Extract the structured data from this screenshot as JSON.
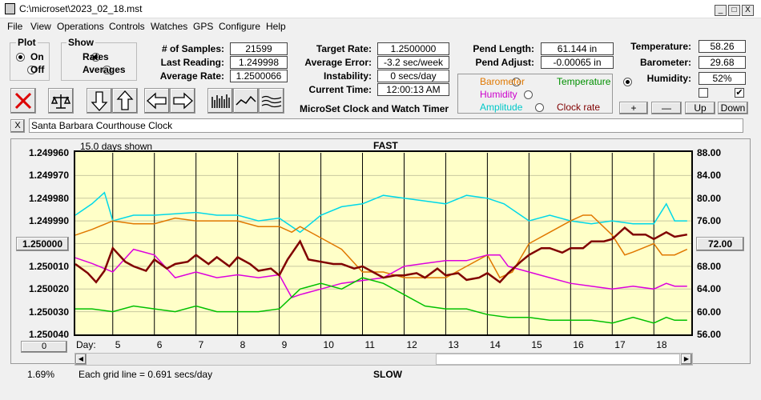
{
  "window": {
    "title": "C:\\microset\\2023_02_18.mst",
    "min": "_",
    "max": "□",
    "close": "X"
  },
  "menu": [
    "File",
    "View",
    "Operations",
    "Controls",
    "Watches",
    "GPS",
    "Configure",
    "Help"
  ],
  "plot_group": {
    "title": "Plot",
    "on": "On",
    "off": "Off",
    "selected": "On"
  },
  "show_group": {
    "title": "Show",
    "rates": "Rates",
    "averages": "Averages",
    "selected": "Rates"
  },
  "stats": {
    "samples_label": "# of Samples:",
    "samples": "21599",
    "last_label": "Last Reading:",
    "last": "1.249998",
    "avg_label": "Average Rate:",
    "avg": "1.2500066"
  },
  "target": {
    "target_label": "Target Rate:",
    "target": "1.2500000",
    "error_label": "Average Error:",
    "error": "-3.2 sec/week",
    "instab_label": "Instability:",
    "instab": "0 secs/day",
    "time_label": "Current Time:",
    "time": "12:00:13 AM",
    "caption": "MicroSet Clock and Watch Timer"
  },
  "pend": {
    "length_label": "Pend Length:",
    "length": "61.144 in",
    "adjust_label": "Pend Adjust:",
    "adjust": "-0.00065 in"
  },
  "env": {
    "temp_label": "Temperature:",
    "temp": "58.26",
    "baro_label": "Barometer:",
    "baro": "29.68",
    "hum_label": "Humidity:",
    "hum": "52%"
  },
  "overlay": {
    "barometer": "Barometer",
    "humidity": "Humidity",
    "amplitude": "Amplitude",
    "temperature": "Temperature",
    "clock_rate": "Clock rate",
    "selected": "Temperature",
    "colors": {
      "barometer": "#e07800",
      "humidity": "#cc00cc",
      "amplitude": "#00c8c8",
      "temperature": "#009000",
      "clock_rate": "#800000"
    }
  },
  "scale_buttons": {
    "plus": "+",
    "minus": "—",
    "up": "Up",
    "down": "Down"
  },
  "clock_name": {
    "close": "X",
    "value": "Santa Barbara Courthouse Clock"
  },
  "chart_labels": {
    "shown": "15.0 days shown",
    "fast": "FAST",
    "slow": "SLOW",
    "day": "Day:",
    "grid": "Each grid line = 0.691 secs/day",
    "pct": "1.69%",
    "left_btn": "0"
  },
  "chart_data": {
    "type": "line",
    "left_ticks": [
      "1.249960",
      "1.249970",
      "1.249980",
      "1.249990",
      "1.250000",
      "1.250010",
      "1.250020",
      "1.250030",
      "1.250040"
    ],
    "right_ticks": [
      "88.00",
      "84.00",
      "80.00",
      "76.00",
      "72.00",
      "68.00",
      "64.00",
      "60.00",
      "56.00"
    ],
    "day_ticks": [
      "5",
      "6",
      "7",
      "8",
      "9",
      "10",
      "11",
      "12",
      "13",
      "14",
      "15",
      "16",
      "17",
      "18"
    ],
    "xlim": [
      4.1,
      18.9
    ],
    "ylim_left": [
      1.25004,
      1.24996
    ],
    "ylim_right": [
      56,
      88
    ],
    "series": [
      {
        "name": "Amplitude",
        "color": "#00d8e8",
        "x": [
          4.1,
          4.5,
          4.8,
          5.0,
          5.5,
          6.0,
          7.0,
          7.5,
          8.0,
          8.5,
          9.0,
          9.5,
          10.0,
          10.5,
          11.0,
          11.5,
          12.0,
          12.5,
          13.0,
          13.5,
          14.0,
          14.4,
          14.8,
          15.0,
          15.5,
          16.0,
          16.5,
          17.0,
          17.5,
          18.0,
          18.3,
          18.5,
          18.8
        ],
        "y": [
          77,
          79,
          81,
          76,
          77,
          77,
          77.5,
          77,
          77,
          76,
          76.5,
          74,
          77,
          78.5,
          79,
          80.5,
          80,
          79.5,
          79,
          80.5,
          80,
          79,
          77,
          76,
          77,
          76,
          75.5,
          76,
          75.5,
          75.5,
          79,
          76,
          76
        ]
      },
      {
        "name": "Barometer",
        "color": "#e07800",
        "x": [
          4.1,
          4.5,
          5.0,
          5.5,
          6.0,
          6.5,
          7.0,
          7.5,
          8.0,
          8.5,
          9.0,
          9.3,
          9.5,
          10.0,
          10.5,
          11.0,
          11.5,
          12.0,
          12.5,
          13.0,
          13.5,
          14.0,
          14.3,
          14.6,
          15.0,
          15.5,
          16.0,
          16.3,
          16.5,
          17.0,
          17.3,
          17.5,
          18.0,
          18.2,
          18.5,
          18.8
        ],
        "y": [
          73.5,
          74.5,
          76,
          75.5,
          75.5,
          76.5,
          76,
          76,
          76,
          75,
          75,
          74,
          75,
          73,
          71,
          67,
          67,
          66,
          66,
          66,
          68,
          70,
          66,
          67,
          72,
          74,
          76,
          77,
          77,
          73.5,
          70,
          70.5,
          72,
          70,
          70,
          71
        ]
      },
      {
        "name": "Humidity",
        "color": "#dd00dd",
        "x": [
          4.1,
          4.5,
          5.0,
          5.5,
          6.0,
          6.5,
          7.0,
          7.5,
          8.0,
          8.5,
          9.0,
          9.3,
          9.5,
          10.0,
          10.5,
          11.0,
          11.5,
          12.0,
          12.5,
          13.0,
          13.5,
          14.0,
          14.3,
          14.5,
          15.0,
          15.5,
          16.0,
          16.5,
          17.0,
          17.5,
          18.0,
          18.3,
          18.5,
          18.8
        ],
        "y": [
          69.5,
          68.5,
          67,
          71,
          70,
          66,
          67,
          66,
          66.5,
          66,
          66.5,
          62.5,
          63,
          64,
          65,
          65.5,
          66,
          68,
          68.5,
          69,
          69,
          70,
          70,
          68,
          67,
          66,
          65,
          64.5,
          64,
          64.5,
          64,
          65,
          64.5,
          64.5
        ]
      },
      {
        "name": "Temperature",
        "color": "#00c000",
        "x": [
          4.1,
          4.5,
          5.0,
          5.5,
          6.0,
          6.5,
          7.0,
          7.5,
          8.0,
          8.5,
          9.0,
          9.5,
          10.0,
          10.5,
          11.0,
          11.5,
          12.0,
          12.5,
          13.0,
          13.5,
          14.0,
          14.5,
          15.0,
          15.5,
          16.0,
          16.5,
          17.0,
          17.5,
          18.0,
          18.3,
          18.5,
          18.8
        ],
        "y": [
          60.5,
          60.5,
          60,
          61,
          60.5,
          60,
          61,
          60,
          60,
          60,
          60.5,
          64,
          65,
          64,
          66,
          65,
          63,
          61,
          60.5,
          60.5,
          59.5,
          59,
          59,
          58.5,
          58.5,
          58.5,
          58,
          59,
          58,
          59,
          58.5,
          58.5
        ]
      },
      {
        "name": "Clock rate",
        "color": "#800000",
        "x": [
          4.1,
          4.4,
          4.6,
          4.8,
          5.0,
          5.3,
          5.5,
          5.8,
          6.0,
          6.3,
          6.5,
          6.8,
          7.0,
          7.3,
          7.5,
          7.8,
          8.0,
          8.3,
          8.5,
          8.8,
          9.0,
          9.2,
          9.5,
          9.7,
          10.0,
          10.3,
          10.5,
          10.8,
          11.0,
          11.3,
          11.5,
          11.8,
          12.0,
          12.3,
          12.5,
          12.8,
          13.0,
          13.3,
          13.5,
          13.8,
          14.0,
          14.3,
          14.5,
          14.8,
          15.0,
          15.3,
          15.5,
          15.8,
          16.0,
          16.3,
          16.5,
          16.8,
          17.0,
          17.3,
          17.5,
          17.8,
          18.0,
          18.3,
          18.5,
          18.8
        ],
        "y": [
          1.250009,
          1.250013,
          1.250017,
          1.250012,
          1.250002,
          1.250008,
          1.25001,
          1.250012,
          1.250007,
          1.250011,
          1.250009,
          1.250008,
          1.250005,
          1.250009,
          1.250006,
          1.25001,
          1.250006,
          1.250009,
          1.250012,
          1.250011,
          1.250014,
          1.250007,
          1.249999,
          1.250007,
          1.250008,
          1.250009,
          1.250009,
          1.250011,
          1.25001,
          1.250013,
          1.250015,
          1.250014,
          1.250014,
          1.250013,
          1.250015,
          1.250011,
          1.250014,
          1.250013,
          1.250016,
          1.250015,
          1.250013,
          1.250017,
          1.250013,
          1.250008,
          1.250005,
          1.250002,
          1.250002,
          1.250004,
          1.250002,
          1.250002,
          1.249999,
          1.249999,
          1.249998,
          1.249993,
          1.249996,
          1.249996,
          1.249998,
          1.249995,
          1.249997,
          1.249996
        ]
      }
    ]
  }
}
